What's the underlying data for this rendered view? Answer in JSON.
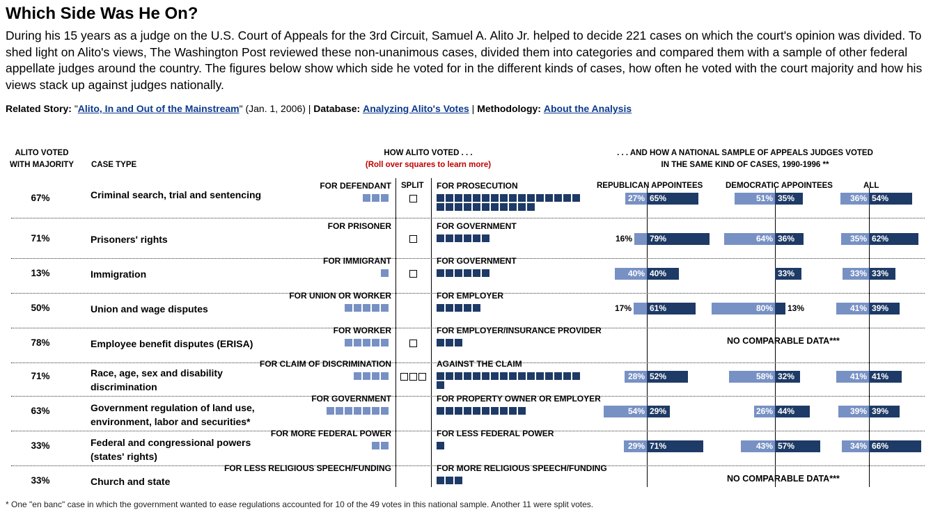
{
  "header": {
    "title": "Which Side Was He On?",
    "intro": "During his 15 years as a judge on the U.S. Court of Appeals for the 3rd Circuit, Samuel A. Alito Jr. helped to decide 221 cases on which the court's opinion was divided. To shed light on Alito's views, The Washington Post reviewed these non-unanimous cases, divided them into categories and compared them with a sample of other federal appellate judges around the country. The figures below show which side he voted for in the different kinds of cases, how often he voted with the court majority and how his views stack up against judges nationally.",
    "related_label": "Related Story:",
    "related_link": "Alito, In and Out of the Mainstream",
    "related_quote_open": "\"",
    "related_quote_close": "\"",
    "related_date": " (Jan. 1, 2006) | ",
    "database_label": "Database:",
    "database_link": "Analyzing Alito's Votes",
    "sep": " | ",
    "methodology_label": "Methodology:",
    "methodology_link": "About the Analysis"
  },
  "columns": {
    "majority_1": "ALITO VOTED",
    "majority_2": "WITH MAJORITY",
    "case_type": "CASE TYPE",
    "how_voted": "HOW ALITO VOTED . . .",
    "rollover": "(Roll over squares to learn more)",
    "national_1": ". . . AND HOW A NATIONAL SAMPLE  OF APPEALS JUDGES VOTED",
    "national_2": "IN THE SAME KIND OF CASES, 1990-1996 **",
    "split": "SPLIT",
    "republican": "REPUBLICAN APPOINTEES",
    "democratic": "DEMOCRATIC APPOINTEES",
    "all": "ALL"
  },
  "colors": {
    "defense": "#7891c4",
    "prosecution": "#1e3a66",
    "alert": "#c00000",
    "link": "#0b3a8c"
  },
  "chart_data": {
    "type": "table",
    "title": "Which Side Was He On?",
    "units": "number of votes (squares); percent of votes (bars)",
    "rows": [
      {
        "majority": "67%",
        "case_type": "Criminal search, trial and sentencing",
        "left_label": "FOR DEFENDANT",
        "right_label": "FOR PROSECUTION",
        "left_votes": 3,
        "split_votes": 1,
        "right_votes": 27,
        "national": {
          "republican": {
            "left": 27,
            "right": 65
          },
          "democratic": {
            "left": 51,
            "right": 35
          },
          "all": {
            "left": 36,
            "right": 54
          }
        }
      },
      {
        "majority": "71%",
        "case_type": "Prisoners' rights",
        "left_label": "FOR PRISONER",
        "right_label": "FOR GOVERNMENT",
        "left_votes": 0,
        "split_votes": 1,
        "right_votes": 6,
        "national": {
          "republican": {
            "left": 16,
            "right": 79
          },
          "democratic": {
            "left": 64,
            "right": 36
          },
          "all": {
            "left": 35,
            "right": 62
          }
        }
      },
      {
        "majority": "13%",
        "case_type": "Immigration",
        "left_label": "FOR IMMIGRANT",
        "right_label": "FOR GOVERNMENT",
        "left_votes": 1,
        "split_votes": 1,
        "right_votes": 6,
        "national": {
          "republican": {
            "left": 40,
            "right": 40
          },
          "democratic": {
            "left": 0,
            "right": 33
          },
          "all": {
            "left": 33,
            "right": 33
          }
        }
      },
      {
        "majority": "50%",
        "case_type": "Union and wage disputes",
        "left_label": "FOR UNION OR WORKER",
        "right_label": "FOR EMPLOYER",
        "left_votes": 5,
        "split_votes": 0,
        "right_votes": 5,
        "national": {
          "republican": {
            "left": 17,
            "right": 61
          },
          "democratic": {
            "left": 80,
            "right": 13
          },
          "all": {
            "left": 41,
            "right": 39
          }
        }
      },
      {
        "majority": "78%",
        "case_type": "Employee benefit disputes (ERISA)",
        "left_label": "FOR WORKER",
        "right_label": "FOR EMPLOYER/INSURANCE PROVIDER",
        "left_votes": 5,
        "split_votes": 1,
        "right_votes": 3,
        "national": null
      },
      {
        "majority": "71%",
        "case_type": "Race, age, sex and disability discrimination",
        "left_label": "FOR CLAIM OF DISCRIMINATION",
        "right_label": "AGAINST THE CLAIM",
        "left_votes": 4,
        "split_votes": 3,
        "right_votes": 17,
        "national": {
          "republican": {
            "left": 28,
            "right": 52
          },
          "democratic": {
            "left": 58,
            "right": 32
          },
          "all": {
            "left": 41,
            "right": 41
          }
        }
      },
      {
        "majority": "63%",
        "case_type": "Government regulation of land use, environment, labor and securities*",
        "left_label": "FOR GOVERNMENT",
        "right_label": "FOR PROPERTY OWNER OR EMPLOYER",
        "left_votes": 7,
        "split_votes": 0,
        "right_votes": 10,
        "national": {
          "republican": {
            "left": 54,
            "right": 29
          },
          "democratic": {
            "left": 26,
            "right": 44
          },
          "all": {
            "left": 39,
            "right": 39
          }
        }
      },
      {
        "majority": "33%",
        "case_type": "Federal and congressional powers (states' rights)",
        "left_label": "FOR MORE FEDERAL POWER",
        "right_label": "FOR LESS FEDERAL POWER",
        "left_votes": 2,
        "split_votes": 0,
        "right_votes": 1,
        "national": {
          "republican": {
            "left": 29,
            "right": 71
          },
          "democratic": {
            "left": 43,
            "right": 57
          },
          "all": {
            "left": 34,
            "right": 66
          }
        }
      },
      {
        "majority": "33%",
        "case_type": "Church and state",
        "left_label": "FOR LESS RELIGIOUS SPEECH/FUNDING",
        "right_label": "FOR MORE RELIGIOUS SPEECH/FUNDING",
        "left_votes": 0,
        "split_votes": 0,
        "right_votes": 3,
        "national": null
      }
    ]
  },
  "no_data_text": "NO COMPARABLE DATA***",
  "footnote": "* One \"en banc\" case in which the government wanted to ease regulations accounted for 10 of the 49 votes in this national sample. Another 11 were split votes."
}
